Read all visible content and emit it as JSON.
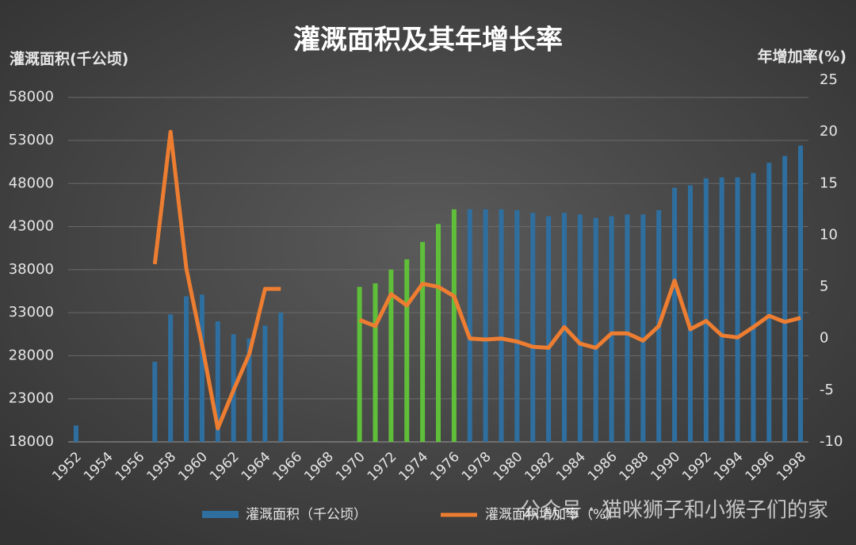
{
  "chart_data": {
    "type": "bar-line",
    "title": "灌溉面积及其年增长率",
    "y_label": "灌溉面积(千公顷)",
    "y2_label": "年增加率(%)",
    "watermark": "公众号 · 猫咪狮子和小猴子们的家",
    "categories": [
      "1952",
      null,
      "1954",
      null,
      "1956",
      null,
      "1958",
      null,
      "1960",
      null,
      "1962",
      null,
      "1964",
      null,
      "1966",
      null,
      "1968",
      null,
      "1970",
      null,
      "1972",
      null,
      "1974",
      null,
      "1976",
      null,
      "1978",
      null,
      "1980",
      null,
      "1982",
      null,
      "1984",
      null,
      "1986",
      null,
      "1988",
      null,
      "1990",
      null,
      "1992",
      null,
      "1994",
      null,
      "1996",
      null,
      "1998"
    ],
    "series": [
      {
        "name": "灌溉面积（千公顷）",
        "color": "#2e6fa0",
        "axis": "y",
        "colors": [
          "#2e6fa0",
          "#2e6fa0",
          "#2e6fa0",
          "#2e6fa0",
          "#2e6fa0",
          "#2e6fa0",
          "#2e6fa0",
          "#2e6fa0",
          "#2e6fa0",
          "#2e6fa0",
          "#2e6fa0",
          "#2e6fa0",
          "#2e6fa0",
          "#2e6fa0",
          "#2e6fa0",
          "#2e6fa0",
          "#2e6fa0",
          "#2e6fa0",
          "#5fbf3a",
          "#5fbf3a",
          "#5fbf3a",
          "#5fbf3a",
          "#5fbf3a",
          "#5fbf3a",
          "#5fbf3a",
          "#2e6fa0",
          "#2e6fa0",
          "#2e6fa0",
          "#2e6fa0",
          "#2e6fa0",
          "#2e6fa0",
          "#2e6fa0",
          "#2e6fa0",
          "#2e6fa0",
          "#2e6fa0",
          "#2e6fa0",
          "#2e6fa0",
          "#2e6fa0",
          "#2e6fa0",
          "#2e6fa0",
          "#2e6fa0",
          "#2e6fa0",
          "#2e6fa0",
          "#2e6fa0",
          "#2e6fa0",
          "#2e6fa0",
          "#2e6fa0"
        ],
        "values": [
          19900,
          null,
          null,
          null,
          null,
          27300,
          32800,
          34900,
          35100,
          32000,
          30500,
          30000,
          31500,
          33000,
          null,
          null,
          null,
          null,
          36000,
          36400,
          38000,
          39200,
          41200,
          43300,
          45000,
          45000,
          45000,
          45000,
          44900,
          44600,
          44200,
          44600,
          44400,
          44000,
          44200,
          44400,
          44400,
          44900,
          47500,
          47800,
          48600,
          48700,
          48700,
          49200,
          50400,
          51200,
          52400
        ]
      },
      {
        "name": "灌溉面积增加率（%）",
        "color": "#ed7d31",
        "axis": "y2",
        "values": [
          null,
          null,
          null,
          null,
          null,
          7.2,
          20,
          6.8,
          -0.6,
          -8.7,
          -5,
          -1.5,
          4.8,
          4.8,
          null,
          null,
          null,
          null,
          1.8,
          1.2,
          4.3,
          3.2,
          5.3,
          5.0,
          4.1,
          0,
          -0.1,
          0,
          -0.3,
          -0.8,
          -0.9,
          1.1,
          -0.5,
          -0.9,
          0.5,
          0.5,
          -0.2,
          1.2,
          5.6,
          0.9,
          1.7,
          0.3,
          0.1,
          1.1,
          2.2,
          1.6,
          2.0
        ]
      }
    ],
    "ylim": [
      18000,
      60000
    ],
    "yticks": [
      18000,
      23000,
      28000,
      33000,
      38000,
      43000,
      48000,
      53000,
      58000
    ],
    "y2lim": [
      -10,
      25
    ],
    "y2ticks": [
      -10,
      -5,
      0,
      5,
      10,
      15,
      20,
      25
    ],
    "grid": true
  }
}
